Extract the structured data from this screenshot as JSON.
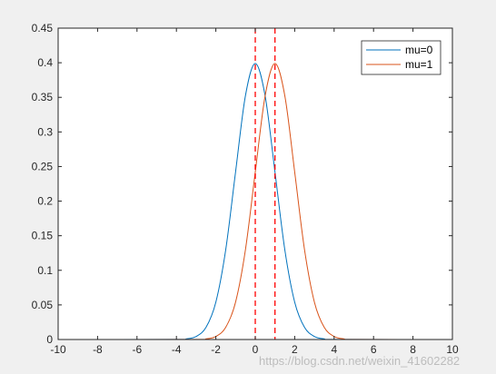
{
  "chart_data": {
    "type": "line",
    "title": "",
    "xlabel": "",
    "ylabel": "",
    "xlim": [
      -10,
      10
    ],
    "ylim": [
      0,
      0.45
    ],
    "grid": false,
    "legend_position": "top-right",
    "x_ticks": [
      -10,
      -8,
      -6,
      -4,
      -2,
      0,
      2,
      4,
      6,
      8,
      10
    ],
    "x_tick_labels": [
      "-10",
      "-8",
      "-6",
      "-4",
      "-2",
      "0",
      "2",
      "4",
      "6",
      "8",
      "10"
    ],
    "y_ticks": [
      0,
      0.05,
      0.1,
      0.15,
      0.2,
      0.25,
      0.3,
      0.35,
      0.4,
      0.45
    ],
    "y_tick_labels": [
      "0",
      "0.05",
      "0.1",
      "0.15",
      "0.2",
      "0.25",
      "0.3",
      "0.35",
      "0.4",
      "0.45"
    ],
    "series": [
      {
        "name": "mu=0",
        "color": "#0072bd",
        "x": [
          -10,
          -4,
          -3.5,
          -3,
          -2.5,
          -2,
          -1.5,
          -1,
          -0.5,
          0,
          0.5,
          1,
          1.5,
          2,
          2.5,
          3,
          3.5,
          4,
          10
        ],
        "y": [
          0,
          0.0001,
          0.0009,
          0.0044,
          0.0175,
          0.054,
          0.1295,
          0.242,
          0.3521,
          0.3989,
          0.3521,
          0.242,
          0.1295,
          0.054,
          0.0175,
          0.0044,
          0.0009,
          0.0001,
          0
        ]
      },
      {
        "name": "mu=1",
        "color": "#d95319",
        "x": [
          -10,
          -3,
          -2.5,
          -2,
          -1.5,
          -1,
          -0.5,
          0,
          0.5,
          1,
          1.5,
          2,
          2.5,
          3,
          3.5,
          4,
          4.5,
          5,
          10
        ],
        "y": [
          0,
          0.0001,
          0.0009,
          0.0044,
          0.0175,
          0.054,
          0.1295,
          0.242,
          0.3521,
          0.3989,
          0.3521,
          0.242,
          0.1295,
          0.054,
          0.0175,
          0.0044,
          0.0009,
          0.0001,
          0
        ]
      }
    ],
    "vertical_lines": [
      {
        "x": 0,
        "color": "#ff0000",
        "style": "dashed"
      },
      {
        "x": 1,
        "color": "#ff0000",
        "style": "dashed"
      }
    ]
  },
  "watermark": "https://blog.csdn.net/weixin_41602282"
}
